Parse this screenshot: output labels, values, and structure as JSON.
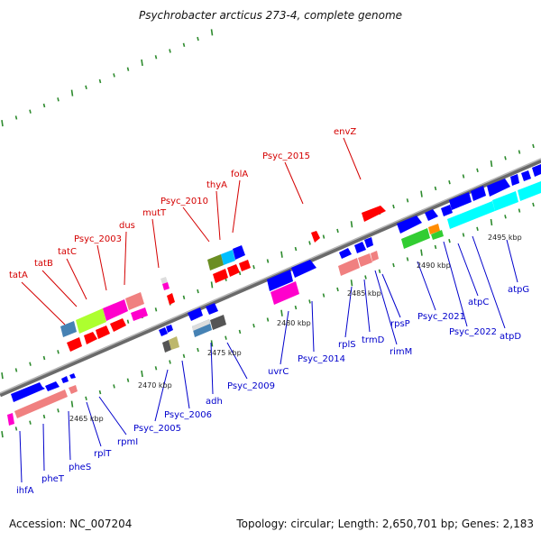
{
  "title": "Psychrobacter arcticus 273-4, complete genome",
  "footer": {
    "accession": "Accession: NC_007204",
    "summary": "Topology: circular; Length: 2,650,701 bp; Genes: 2,183"
  },
  "colors": {
    "top_labels": "#d40000",
    "bottom_labels": "#0000cc",
    "backbone": "#888888",
    "tick_marks": "#2e8b2e"
  },
  "scale_labels": [
    "2465 kbp",
    "2470 kbp",
    "2475 kbp",
    "2480 kbp",
    "2485 kbp",
    "2490 kbp",
    "2495 kbp"
  ],
  "top_labels": [
    "tatA",
    "tatB",
    "tatC",
    "Psyc_2003",
    "dus",
    "mutT",
    "Psyc_2010",
    "thyA",
    "folA",
    "Psyc_2015",
    "envZ"
  ],
  "bottom_labels": [
    "ihfA",
    "pheT",
    "pheS",
    "rplT",
    "rpmI",
    "Psyc_2005",
    "Psyc_2006",
    "adh",
    "Psyc_2009",
    "uvrC",
    "Psyc_2014",
    "rplS",
    "trmD",
    "rimM",
    "rpsP",
    "Psyc_2021",
    "Psyc_2022",
    "atpC",
    "atpD",
    "atpG"
  ]
}
